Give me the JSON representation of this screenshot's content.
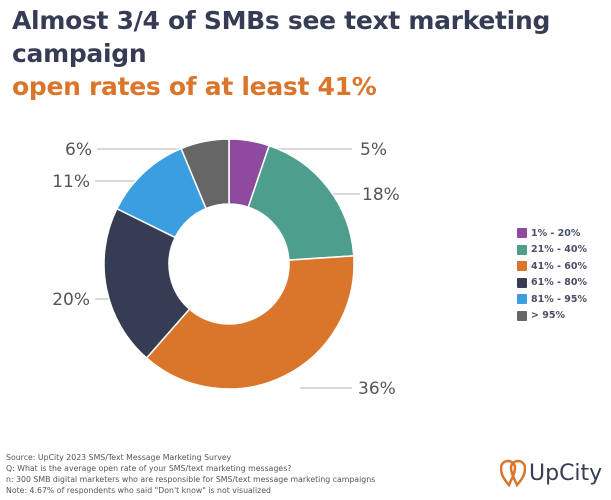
{
  "chart_data": {
    "type": "pie",
    "donut": true,
    "title": "Almost 3/4 of SMBs see text marketing campaign",
    "title_highlight": "open rates of at least 41%",
    "categories": [
      "1% - 20%",
      "21% - 40%",
      "41% - 60%",
      "61% - 80%",
      "81% - 95%",
      "> 95%"
    ],
    "values": [
      5,
      18,
      36,
      20,
      11,
      6
    ],
    "data_labels": [
      "5%",
      "18%",
      "36%",
      "20%",
      "11%",
      "6%"
    ],
    "colors": [
      "#8e4a9e",
      "#4e9e8e",
      "#d9762c",
      "#363c54",
      "#3a9ee0",
      "#666666"
    ],
    "legend_position": "right"
  },
  "notes": [
    "Source: UpCity 2023 SMS/Text Message Marketing Survey",
    "Q: What is the average open rate of your SMS/text marketing messages?",
    "n: 300 SMB digital marketers who are responsible for SMS/text message marketing campaigns",
    "Note: 4.67% of respondents who said \"Don't know\" is not visualized"
  ],
  "logo": {
    "text": "UpCity",
    "color": "#d9762c"
  }
}
